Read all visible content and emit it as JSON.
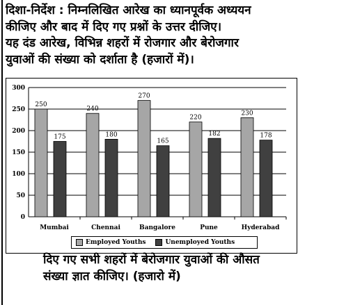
{
  "directions": {
    "line1": "दिशा-निर्देश : निम्नलिखित आरेख का ध्यानपूर्वक अध्ययन",
    "line2": "कीजिए और बाद में दिए गए प्रश्नों के उत्तर दीजिए।",
    "line3": "यह दंड आरेख, विभिन्न शहरों में रोजगार और बेरोजगार",
    "line4": "युवाओं की संख्या को दर्शाता है (हजारों में)।"
  },
  "question": {
    "line1": "दिए गए सभी शहरों में बेरोजगार युवाओं की औसत",
    "line2": "संख्या ज्ञात कीजिए। (हजारो में)"
  },
  "chart_data": {
    "type": "bar",
    "categories": [
      "Mumbai",
      "Chennai",
      "Bangalore",
      "Pune",
      "Hyderabad"
    ],
    "series": [
      {
        "name": "Employed Youths",
        "values": [
          250,
          240,
          270,
          220,
          230
        ],
        "color": "#a6a6a6"
      },
      {
        "name": "Unemployed Youths",
        "values": [
          175,
          180,
          165,
          182,
          178
        ],
        "color": "#404040"
      }
    ],
    "ylim": [
      0,
      300
    ],
    "yticks": [
      0,
      50,
      100,
      150,
      200,
      250,
      300
    ],
    "grid": true,
    "legend_position": "bottom"
  }
}
